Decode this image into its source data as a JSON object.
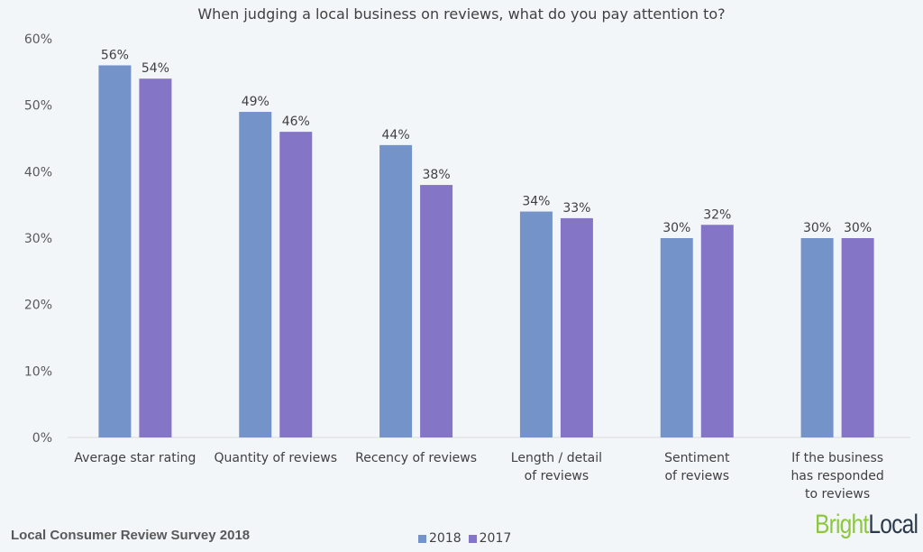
{
  "chart_data": {
    "type": "bar",
    "title": "When judging a local business on reviews, what do you pay attention to?",
    "categories": [
      [
        "Average star rating"
      ],
      [
        "Quantity of reviews"
      ],
      [
        "Recency of reviews"
      ],
      [
        "Length / detail",
        "of reviews"
      ],
      [
        "Sentiment",
        "of reviews"
      ],
      [
        "If the business",
        "has responded",
        "to reviews"
      ]
    ],
    "series": [
      {
        "name": "2018",
        "color": "#7393c9",
        "values": [
          56,
          49,
          44,
          34,
          30,
          30
        ]
      },
      {
        "name": "2017",
        "color": "#8575c6",
        "values": [
          54,
          46,
          38,
          33,
          32,
          30
        ]
      }
    ],
    "ylim": [
      0,
      60
    ],
    "yticks": [
      "0%",
      "10%",
      "20%",
      "30%",
      "40%",
      "50%",
      "60%"
    ],
    "value_suffix": "%",
    "grid": false,
    "legend": "bottom-center"
  },
  "footer": {
    "source": "Local Consumer Review Survey 2018"
  },
  "logo": {
    "part1": "Bright",
    "part2": "Local"
  }
}
